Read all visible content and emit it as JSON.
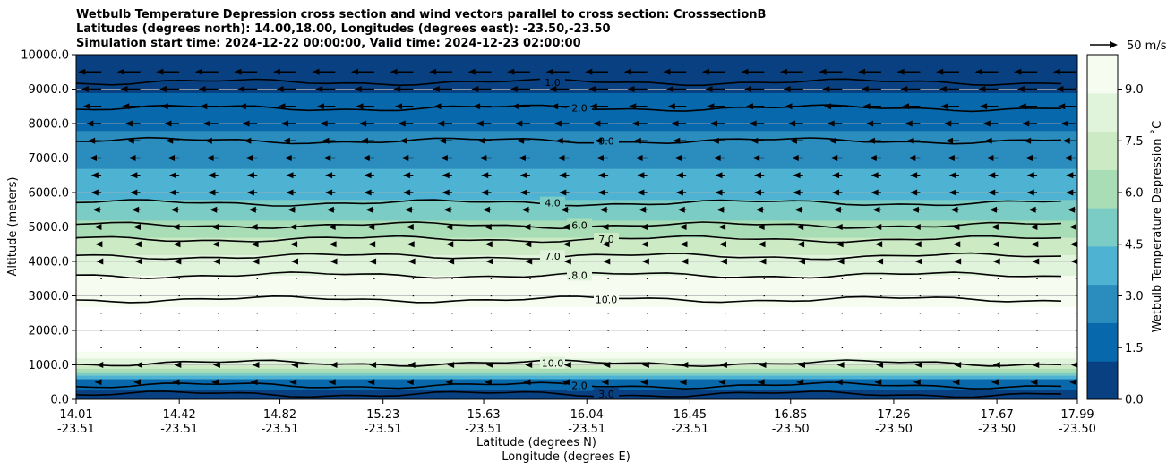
{
  "titles": [
    "Wetbulb Temperature Depression cross section and wind vectors parallel to cross section: CrosssectionB",
    "Latitudes (degrees north): 14.00,18.00, Longitudes (degrees east): -23.50,-23.50",
    "Simulation start time: 2024-12-22 00:00:00, Valid time: 2024-12-23 02:00:00"
  ],
  "quiver_key": "50 m/s",
  "chart_data": {
    "type": "heatmap",
    "ylabel": "Altitude (meters)",
    "xlabel_line1": "Latitude (degrees N)",
    "xlabel_line2": "Longitude (degrees E)",
    "ylim": [
      0,
      10000
    ],
    "yticks": [
      "0.0",
      "1000.0",
      "2000.0",
      "3000.0",
      "4000.0",
      "5000.0",
      "6000.0",
      "7000.0",
      "8000.0",
      "9000.0",
      "10000.0"
    ],
    "ytick_values": [
      0,
      1000,
      2000,
      3000,
      4000,
      5000,
      6000,
      7000,
      8000,
      9000,
      10000
    ],
    "xlim": [
      14.01,
      17.99
    ],
    "xticks": [
      {
        "lat": "14.01",
        "lon": "-23.51",
        "v": 14.01
      },
      {
        "lat": "14.42",
        "lon": "-23.51",
        "v": 14.42
      },
      {
        "lat": "14.82",
        "lon": "-23.51",
        "v": 14.82
      },
      {
        "lat": "15.23",
        "lon": "-23.51",
        "v": 15.23
      },
      {
        "lat": "15.63",
        "lon": "-23.51",
        "v": 15.63
      },
      {
        "lat": "16.04",
        "lon": "-23.51",
        "v": 16.04
      },
      {
        "lat": "16.45",
        "lon": "-23.51",
        "v": 16.45
      },
      {
        "lat": "16.85",
        "lon": "-23.50",
        "v": 16.85
      },
      {
        "lat": "17.26",
        "lon": "-23.50",
        "v": 17.26
      },
      {
        "lat": "17.67",
        "lon": "-23.50",
        "v": 17.67
      },
      {
        "lat": "17.99",
        "lon": "-23.50",
        "v": 17.99
      }
    ],
    "grid": "horizontal",
    "colorbar": {
      "label": "Wetbulb Temperature Depression ˚C",
      "range": [
        0,
        10
      ],
      "ticks": [
        "0.0",
        "1.5",
        "3.0",
        "4.5",
        "6.0",
        "7.5",
        "9.0"
      ],
      "tick_values": [
        0,
        1.5,
        3.0,
        4.5,
        6.0,
        7.5,
        9.0
      ],
      "colors": [
        "#084081",
        "#0868ac",
        "#2b8cbe",
        "#4eb3d3",
        "#7bccc4",
        "#a8ddb5",
        "#ccebc5",
        "#e0f3db",
        "#f7fcf0"
      ]
    },
    "profile": [
      {
        "alt": 0,
        "dep": 0.3
      },
      {
        "alt": 500,
        "dep": 1.5
      },
      {
        "alt": 1000,
        "dep": 8.0
      },
      {
        "alt": 1500,
        "dep": 10.0
      },
      {
        "alt": 2500,
        "dep": 10.0
      },
      {
        "alt": 3500,
        "dep": 9.0
      },
      {
        "alt": 4300,
        "dep": 7.5
      },
      {
        "alt": 5000,
        "dep": 6.0
      },
      {
        "alt": 6000,
        "dep": 4.0
      },
      {
        "alt": 7000,
        "dep": 3.0
      },
      {
        "alt": 8000,
        "dep": 2.0
      },
      {
        "alt": 9000,
        "dep": 1.0
      },
      {
        "alt": 10000,
        "dep": 0.5
      }
    ],
    "contours": [
      {
        "label": "1.0",
        "alt": 9200
      },
      {
        "label": "2.0",
        "alt": 8450
      },
      {
        "label": "3.0",
        "alt": 7500
      },
      {
        "label": "4.0",
        "alt": 5700
      },
      {
        "label": "6.0",
        "alt": 5050
      },
      {
        "label": "7.0",
        "alt": 4650
      },
      {
        "label": "7.0",
        "alt": 4150
      },
      {
        "label": "8.0",
        "alt": 3600
      },
      {
        "label": "10.0",
        "alt": 2900
      },
      {
        "label": "10.0",
        "alt": 1050
      },
      {
        "label": "2.0",
        "alt": 400
      },
      {
        "label": "3.0",
        "alt": 150
      }
    ],
    "wind_levels": [
      {
        "alt": 9500,
        "u": -12
      },
      {
        "alt": 9000,
        "u": -10
      },
      {
        "alt": 8500,
        "u": -9
      },
      {
        "alt": 8000,
        "u": -7
      },
      {
        "alt": 7500,
        "u": -6
      },
      {
        "alt": 7000,
        "u": -5
      },
      {
        "alt": 6500,
        "u": -4
      },
      {
        "alt": 6000,
        "u": -4
      },
      {
        "alt": 5500,
        "u": -3
      },
      {
        "alt": 5000,
        "u": -2
      },
      {
        "alt": 4500,
        "u": -1.5
      },
      {
        "alt": 4000,
        "u": -1
      },
      {
        "alt": 3500,
        "u": -0.5
      },
      {
        "alt": 3000,
        "u": -0.3
      },
      {
        "alt": 2500,
        "u": -0.3
      },
      {
        "alt": 2000,
        "u": -0.3
      },
      {
        "alt": 1500,
        "u": -0.5
      },
      {
        "alt": 1000,
        "u": -1
      },
      {
        "alt": 500,
        "u": -2
      }
    ]
  }
}
